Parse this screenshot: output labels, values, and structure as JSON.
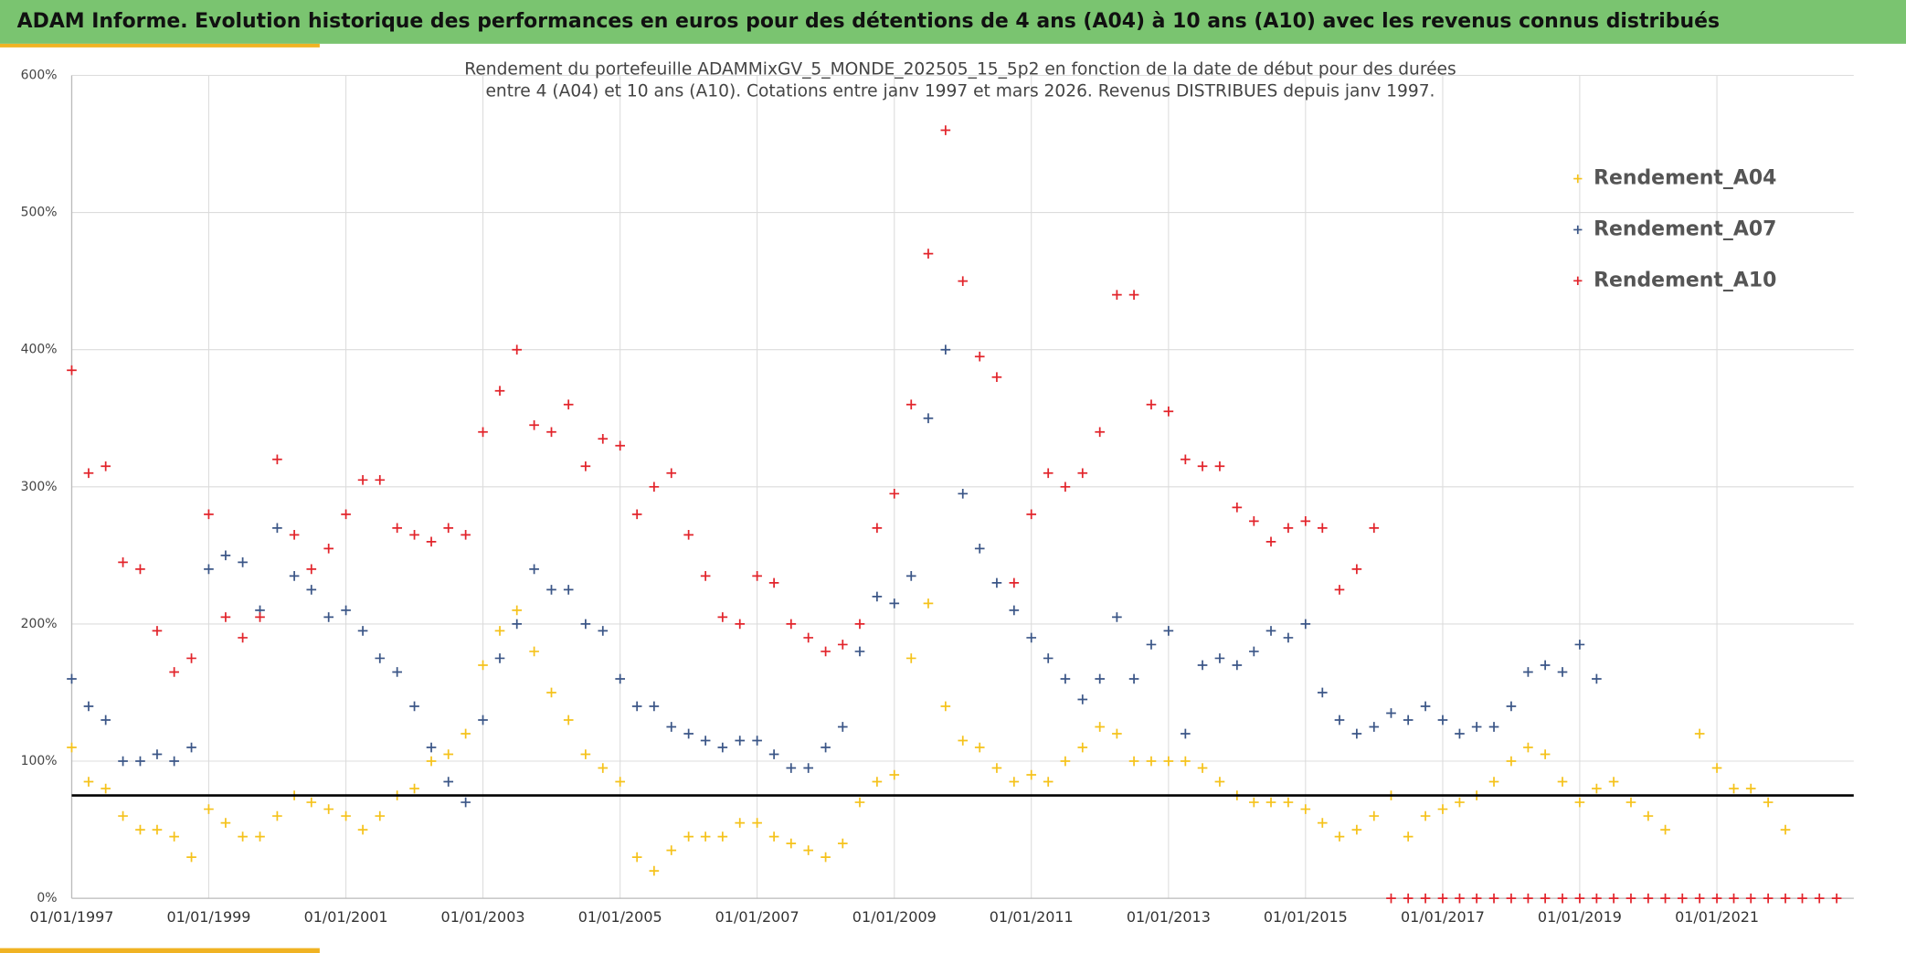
{
  "page_title": "ADAM Informe. Evolution historique des performances en euros pour des détentions de 4 ans (A04) à 10 ans (A10) avec les revenus connus distribués",
  "chart_data": {
    "type": "scatter",
    "title": [
      "Rendement du portefeuille ADAMMixGV_5_MONDE_202505_15_5p2  en fonction de la date de début pour des durées",
      "entre 4 (A04) et 10 ans (A10). Cotations entre janv 1997 et mars 2026. Revenus DISTRIBUES depuis janv 1997."
    ],
    "x": [
      "1997-01-01",
      "1997-04-01",
      "1997-07-01",
      "1997-10-01",
      "1998-01-01",
      "1998-04-01",
      "1998-07-01",
      "1998-10-01",
      "1999-01-01",
      "1999-04-01",
      "1999-07-01",
      "1999-10-01",
      "2000-01-01",
      "2000-04-01",
      "2000-07-01",
      "2000-10-01",
      "2001-01-01",
      "2001-04-01",
      "2001-07-01",
      "2001-10-01",
      "2002-01-01",
      "2002-04-01",
      "2002-07-01",
      "2002-10-01",
      "2003-01-01",
      "2003-04-01",
      "2003-07-01",
      "2003-10-01",
      "2004-01-01",
      "2004-04-01",
      "2004-07-01",
      "2004-10-01",
      "2005-01-01",
      "2005-04-01",
      "2005-07-01",
      "2005-10-01",
      "2006-01-01",
      "2006-04-01",
      "2006-07-01",
      "2006-10-01",
      "2007-01-01",
      "2007-04-01",
      "2007-07-01",
      "2007-10-01",
      "2008-01-01",
      "2008-04-01",
      "2008-07-01",
      "2008-10-01",
      "2009-01-01",
      "2009-04-01",
      "2009-07-01",
      "2009-10-01",
      "2010-01-01",
      "2010-04-01",
      "2010-07-01",
      "2010-10-01",
      "2011-01-01",
      "2011-04-01",
      "2011-07-01",
      "2011-10-01",
      "2012-01-01",
      "2012-04-01",
      "2012-07-01",
      "2012-10-01",
      "2013-01-01",
      "2013-04-01",
      "2013-07-01",
      "2013-10-01",
      "2014-01-01",
      "2014-04-01",
      "2014-07-01",
      "2014-10-01",
      "2015-01-01",
      "2015-04-01",
      "2015-07-01",
      "2015-10-01",
      "2016-01-01",
      "2016-04-01",
      "2016-07-01",
      "2016-10-01",
      "2017-01-01",
      "2017-04-01",
      "2017-07-01",
      "2017-10-01",
      "2018-01-01",
      "2018-04-01",
      "2018-07-01",
      "2018-10-01",
      "2019-01-01",
      "2019-04-01",
      "2019-07-01",
      "2019-10-01",
      "2020-01-01",
      "2020-04-01",
      "2020-07-01",
      "2020-10-01",
      "2021-01-01",
      "2021-04-01",
      "2021-07-01",
      "2021-10-01",
      "2022-01-01",
      "2022-04-01",
      "2022-07-01",
      "2022-10-01"
    ],
    "series": [
      {
        "name": "Rendement_A04",
        "color": "#f5c21b",
        "values": [
          110,
          85,
          80,
          60,
          50,
          50,
          45,
          30,
          65,
          55,
          45,
          45,
          60,
          75,
          70,
          65,
          60,
          50,
          60,
          75,
          80,
          100,
          105,
          120,
          170,
          195,
          210,
          180,
          150,
          130,
          105,
          95,
          85,
          30,
          20,
          35,
          45,
          45,
          45,
          55,
          55,
          45,
          40,
          35,
          30,
          40,
          70,
          85,
          90,
          175,
          215,
          140,
          115,
          110,
          95,
          85,
          90,
          85,
          100,
          110,
          125,
          120,
          100,
          100,
          100,
          100,
          95,
          85,
          75,
          70,
          70,
          70,
          65,
          55,
          45,
          50,
          60,
          75,
          45,
          60,
          65,
          70,
          75,
          85,
          100,
          110,
          105,
          85,
          70,
          80,
          85,
          70,
          60,
          50,
          null,
          120,
          95,
          80,
          80,
          70,
          50,
          null,
          null,
          null
        ]
      },
      {
        "name": "Rendement_A07",
        "color": "#3b5687",
        "values": [
          160,
          140,
          130,
          100,
          100,
          105,
          100,
          110,
          240,
          250,
          245,
          210,
          270,
          235,
          225,
          205,
          210,
          195,
          175,
          165,
          140,
          110,
          85,
          70,
          130,
          175,
          200,
          240,
          225,
          225,
          200,
          195,
          160,
          140,
          140,
          125,
          120,
          115,
          110,
          115,
          115,
          105,
          95,
          95,
          110,
          125,
          180,
          220,
          215,
          235,
          350,
          400,
          295,
          255,
          230,
          210,
          190,
          175,
          160,
          145,
          160,
          205,
          160,
          185,
          195,
          120,
          170,
          175,
          170,
          180,
          195,
          190,
          200,
          150,
          130,
          120,
          125,
          135,
          130,
          140,
          130,
          120,
          125,
          125,
          140,
          165,
          170,
          165,
          185,
          160,
          null,
          null,
          null,
          null,
          null,
          null,
          null,
          null,
          null,
          null,
          null,
          null,
          null,
          null
        ]
      },
      {
        "name": "Rendement_A10",
        "color": "#e2242b",
        "values": [
          385,
          310,
          315,
          245,
          240,
          195,
          165,
          175,
          280,
          205,
          190,
          205,
          320,
          265,
          240,
          255,
          280,
          305,
          305,
          270,
          265,
          260,
          270,
          265,
          340,
          370,
          400,
          345,
          340,
          360,
          315,
          335,
          330,
          280,
          300,
          310,
          265,
          235,
          205,
          200,
          235,
          230,
          200,
          190,
          180,
          185,
          200,
          270,
          295,
          360,
          470,
          560,
          450,
          395,
          380,
          230,
          280,
          310,
          300,
          310,
          340,
          440,
          440,
          360,
          355,
          320,
          315,
          315,
          285,
          275,
          260,
          270,
          275,
          270,
          225,
          240,
          270,
          0,
          0,
          0,
          0,
          0,
          0,
          0,
          0,
          0,
          0,
          0,
          0,
          0,
          0,
          0,
          0,
          0,
          0,
          0,
          0,
          0,
          0,
          0,
          0,
          0,
          0,
          0
        ]
      }
    ],
    "hline": 75,
    "xlim": [
      "1997-01-01",
      "2022-12-31"
    ],
    "ylim": [
      0,
      600
    ],
    "yticks": [
      {
        "value": 0,
        "label": "0%"
      },
      {
        "value": 100,
        "label": "100%"
      },
      {
        "value": 200,
        "label": "200%"
      },
      {
        "value": 300,
        "label": "300%"
      },
      {
        "value": 400,
        "label": "400%"
      },
      {
        "value": 500,
        "label": "500%"
      },
      {
        "value": 600,
        "label": "600%"
      }
    ],
    "xticks": [
      {
        "value": "1997-01-01",
        "label": "01/01/1997"
      },
      {
        "value": "1999-01-01",
        "label": "01/01/1999"
      },
      {
        "value": "2001-01-01",
        "label": "01/01/2001"
      },
      {
        "value": "2003-01-01",
        "label": "01/01/2003"
      },
      {
        "value": "2005-01-01",
        "label": "01/01/2005"
      },
      {
        "value": "2007-01-01",
        "label": "01/01/2007"
      },
      {
        "value": "2009-01-01",
        "label": "01/01/2009"
      },
      {
        "value": "2011-01-01",
        "label": "01/01/2011"
      },
      {
        "value": "2013-01-01",
        "label": "01/01/2013"
      },
      {
        "value": "2015-01-01",
        "label": "01/01/2015"
      },
      {
        "value": "2017-01-01",
        "label": "01/01/2017"
      },
      {
        "value": "2019-01-01",
        "label": "01/01/2019"
      },
      {
        "value": "2021-01-01",
        "label": "01/01/2021"
      }
    ],
    "grid": true,
    "legend": "top-right"
  }
}
